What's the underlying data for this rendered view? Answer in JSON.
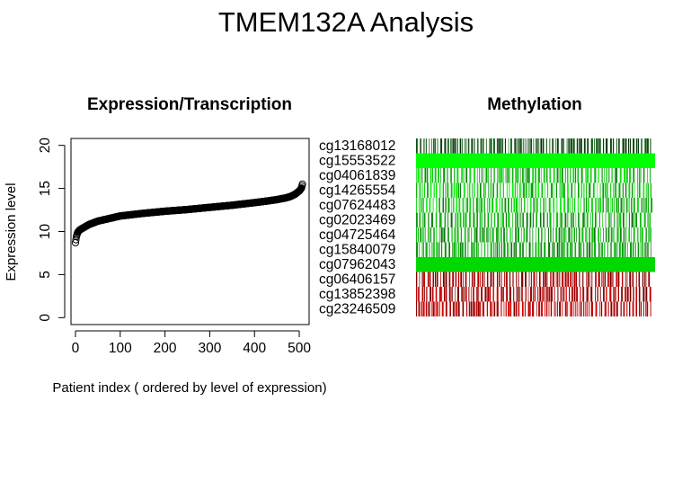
{
  "figure": {
    "title": "TMEM132A Analysis"
  },
  "chart_data": [
    {
      "type": "scatter",
      "title": "Expression/Transcription",
      "xlabel": "Patient index ( ordered by level of expression)",
      "ylabel": "Expression level",
      "xlim": [
        -10,
        522
      ],
      "ylim": [
        -0.8,
        20.8
      ],
      "x_ticks": [
        0,
        100,
        200,
        300,
        400,
        500
      ],
      "y_ticks": [
        0,
        5,
        10,
        15,
        20
      ],
      "n_points": 508,
      "marker": "open-circle",
      "grid": false,
      "legend": "none",
      "series": [
        {
          "x": [
            0,
            2,
            5,
            10,
            20,
            30,
            50,
            75,
            100,
            150,
            200,
            250,
            300,
            350,
            400,
            430,
            450,
            470,
            480,
            490,
            495,
            500,
            503,
            505,
            507
          ],
          "y": [
            8.7,
            9.4,
            9.9,
            10.2,
            10.5,
            10.8,
            11.2,
            11.5,
            11.8,
            12.1,
            12.35,
            12.55,
            12.8,
            13.05,
            13.35,
            13.55,
            13.7,
            13.9,
            14.05,
            14.3,
            14.5,
            14.7,
            14.9,
            15.05,
            15.5
          ]
        }
      ]
    },
    {
      "type": "heatmap",
      "title": "Methylation",
      "rows": [
        "cg13168012",
        "cg15553522",
        "cg04061839",
        "cg14265554",
        "cg07624483",
        "cg02023469",
        "cg04725464",
        "cg15840079",
        "cg07962043",
        "cg06406157",
        "cg13852398",
        "cg23246509"
      ],
      "row_colors": [
        "#0c5a10",
        "#00ff00",
        "#12e012",
        "#0fee0f",
        "#10ea10",
        "#10c510",
        "#12c812",
        "#11c011",
        "#00d800",
        "#c00000",
        "#cc0000",
        "#d80000"
      ],
      "colors": {
        "low": "#00ff00",
        "mid": "#000000",
        "high": "#ff0000"
      },
      "grid": false,
      "legend": "none"
    }
  ]
}
